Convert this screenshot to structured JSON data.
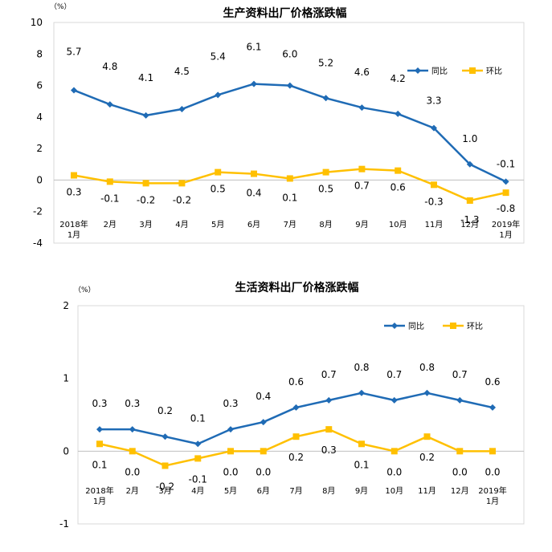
{
  "chart_data": [
    {
      "type": "line",
      "title": "生产资料出厂价格涨跌幅",
      "unit_label": "（%）",
      "categories": [
        [
          "2018年",
          "1月"
        ],
        [
          "2月"
        ],
        [
          "3月"
        ],
        [
          "4月"
        ],
        [
          "5月"
        ],
        [
          "6月"
        ],
        [
          "7月"
        ],
        [
          "8月"
        ],
        [
          "9月"
        ],
        [
          "10月"
        ],
        [
          "11月"
        ],
        [
          "12月"
        ],
        [
          "2019年",
          "1月"
        ]
      ],
      "ylim": [
        -4,
        10
      ],
      "yticks": [
        -4,
        -2,
        0,
        2,
        4,
        6,
        8,
        10
      ],
      "series": [
        {
          "name": "同比",
          "color": "#1F6BB5",
          "marker": "diamond",
          "values": [
            5.7,
            4.8,
            4.1,
            4.5,
            5.4,
            6.1,
            6.0,
            5.2,
            4.6,
            4.2,
            3.3,
            1.0,
            -0.1
          ],
          "labels": [
            "5.7",
            "4.8",
            "4.1",
            "4.5",
            "5.4",
            "6.1",
            "6.0",
            "5.2",
            "4.6",
            "4.2",
            "3.3",
            "1.0",
            "-0.1"
          ]
        },
        {
          "name": "环比",
          "color": "#FFC000",
          "marker": "square",
          "values": [
            0.3,
            -0.1,
            -0.2,
            -0.2,
            0.5,
            0.4,
            0.1,
            0.5,
            0.7,
            0.6,
            -0.3,
            -1.3,
            -0.8
          ],
          "labels": [
            "0.3",
            "-0.1",
            "-0.2",
            "-0.2",
            "0.5",
            "0.4",
            "0.1",
            "0.5",
            "0.7",
            "0.6",
            "-0.3",
            "-1.3",
            "-0.8"
          ]
        }
      ]
    },
    {
      "type": "line",
      "title": "生活资料出厂价格涨跌幅",
      "unit_label": "（%）",
      "categories": [
        [
          "2018年",
          "1月"
        ],
        [
          "2月"
        ],
        [
          "3月"
        ],
        [
          "4月"
        ],
        [
          "5月"
        ],
        [
          "6月"
        ],
        [
          "7月"
        ],
        [
          "8月"
        ],
        [
          "9月"
        ],
        [
          "10月"
        ],
        [
          "11月"
        ],
        [
          "12月"
        ],
        [
          "2019年",
          "1月"
        ]
      ],
      "ylim": [
        -1,
        2
      ],
      "yticks": [
        -1,
        0,
        1,
        2
      ],
      "series": [
        {
          "name": "同比",
          "color": "#1F6BB5",
          "marker": "diamond",
          "values": [
            0.3,
            0.3,
            0.2,
            0.1,
            0.3,
            0.4,
            0.6,
            0.7,
            0.8,
            0.7,
            0.8,
            0.7,
            0.6
          ],
          "labels": [
            "0.3",
            "0.3",
            "0.2",
            "0.1",
            "0.3",
            "0.4",
            "0.6",
            "0.7",
            "0.8",
            "0.7",
            "0.8",
            "0.7",
            "0.6"
          ]
        },
        {
          "name": "环比",
          "color": "#FFC000",
          "marker": "square",
          "values": [
            0.1,
            0.0,
            -0.2,
            -0.1,
            0.0,
            0.0,
            0.2,
            0.3,
            0.1,
            0.0,
            0.2,
            0.0,
            0.0
          ],
          "labels": [
            "0.1",
            "0.0",
            "-0.2",
            "-0.1",
            "0.0",
            "0.0",
            "0.2",
            "0.3",
            "0.1",
            "0.0",
            "0.2",
            "0.0",
            "0.0"
          ]
        }
      ]
    }
  ]
}
